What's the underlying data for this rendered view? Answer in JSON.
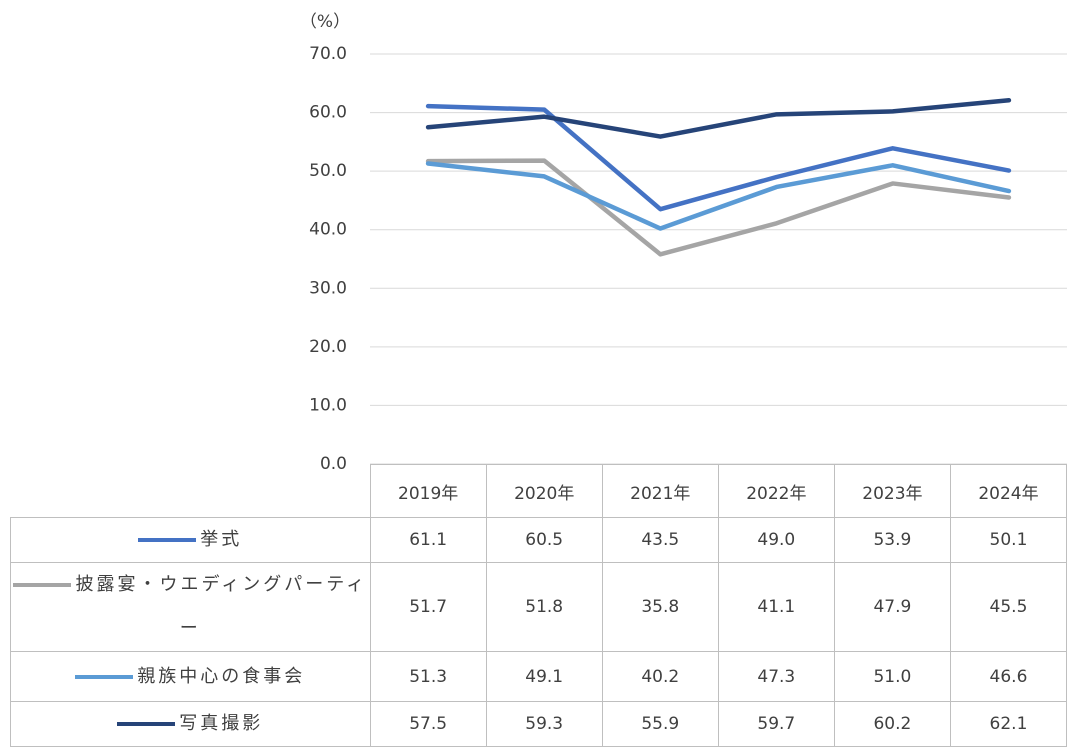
{
  "chart_data": {
    "type": "line",
    "y_axis_label": "（%）",
    "categories": [
      "2019年",
      "2020年",
      "2021年",
      "2022年",
      "2023年",
      "2024年"
    ],
    "series": [
      {
        "name": "挙式",
        "color": "#4472c4",
        "values": [
          61.1,
          60.5,
          43.5,
          49.0,
          53.9,
          50.1
        ],
        "value_labels": [
          "61.1",
          "60.5",
          "43.5",
          "49.0",
          "53.9",
          "50.1"
        ]
      },
      {
        "name": "披露宴・ウエディングパーティー",
        "color": "#a5a5a5",
        "values": [
          51.7,
          51.8,
          35.8,
          41.1,
          47.9,
          45.5
        ],
        "value_labels": [
          "51.7",
          "51.8",
          "35.8",
          "41.1",
          "47.9",
          "45.5"
        ]
      },
      {
        "name": "親族中心の食事会",
        "color": "#5b9bd5",
        "values": [
          51.3,
          49.1,
          40.2,
          47.3,
          51.0,
          46.6
        ],
        "value_labels": [
          "51.3",
          "49.1",
          "40.2",
          "47.3",
          "51.0",
          "46.6"
        ]
      },
      {
        "name": "写真撮影",
        "color": "#264478",
        "values": [
          57.5,
          59.3,
          55.9,
          59.7,
          60.2,
          62.1
        ],
        "value_labels": [
          "57.5",
          "59.3",
          "55.9",
          "59.7",
          "60.2",
          "62.1"
        ]
      }
    ],
    "ylim": [
      0,
      70
    ],
    "yticks": [
      {
        "value": 0,
        "label": "0.0"
      },
      {
        "value": 10,
        "label": "10.0"
      },
      {
        "value": 20,
        "label": "20.0"
      },
      {
        "value": 30,
        "label": "30.0"
      },
      {
        "value": 40,
        "label": "40.0"
      },
      {
        "value": 50,
        "label": "50.0"
      },
      {
        "value": 60,
        "label": "60.0"
      },
      {
        "value": 70,
        "label": "70.0"
      }
    ],
    "grid": true
  }
}
